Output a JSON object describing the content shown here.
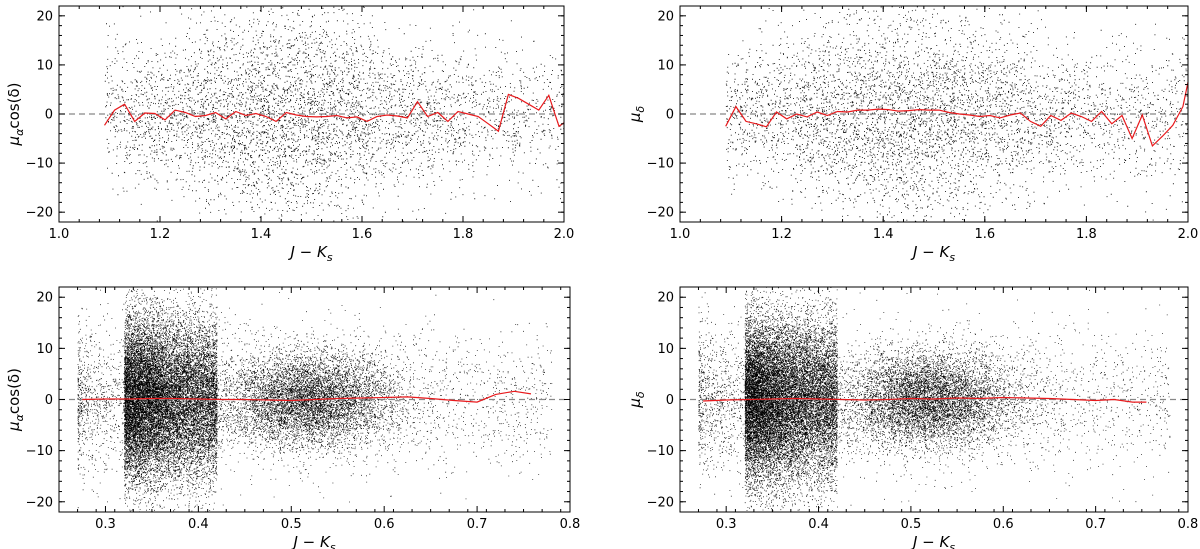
{
  "chart_data": [
    {
      "type": "scatter",
      "xlabel": "J − K",
      "xlabel_sub": "s",
      "ylabel_base": "μ",
      "ylabel_sub": "α",
      "ylabel_rest": "cos(δ)",
      "xlim": [
        1.0,
        2.0
      ],
      "ylim": [
        -22,
        22
      ],
      "xticks": [
        1.0,
        1.2,
        1.4,
        1.6,
        1.8,
        2.0
      ],
      "xtick_labels": [
        "1.0",
        "1.2",
        "1.4",
        "1.6",
        "1.8",
        "2.0"
      ],
      "yticks": [
        -20,
        -10,
        0,
        10,
        20
      ],
      "ytick_labels": [
        "−20",
        "−10",
        "0",
        "10",
        "20"
      ],
      "reference_line_y": 0,
      "reference_color": "#888888",
      "point_color": "#000000",
      "trend_color": "#e8191c",
      "scatter_density": {
        "center_x": 1.45,
        "spread_x": 0.17,
        "x_min": 1.09,
        "x_max": 2.0,
        "approx_points": 5200
      },
      "trend_x": [
        1.09,
        1.11,
        1.13,
        1.15,
        1.17,
        1.19,
        1.21,
        1.23,
        1.25,
        1.27,
        1.29,
        1.31,
        1.33,
        1.35,
        1.37,
        1.39,
        1.41,
        1.43,
        1.45,
        1.47,
        1.49,
        1.51,
        1.53,
        1.55,
        1.57,
        1.59,
        1.61,
        1.63,
        1.65,
        1.67,
        1.69,
        1.71,
        1.73,
        1.75,
        1.77,
        1.79,
        1.81,
        1.83,
        1.85,
        1.87,
        1.89,
        1.91,
        1.93,
        1.95,
        1.97,
        1.99,
        2.0
      ],
      "trend_y": [
        -2.3,
        0.8,
        2,
        -1.5,
        0.2,
        0.1,
        -1.2,
        0.8,
        0.3,
        -0.5,
        -0.3,
        0.3,
        -1,
        0.5,
        -0.3,
        0.1,
        -0.5,
        -1.5,
        0.3,
        -0.2,
        -0.5,
        -0.6,
        -0.5,
        -0.3,
        -0.8,
        -0.6,
        -1.5,
        -0.5,
        -0.2,
        -0.4,
        -0.8,
        2.5,
        -0.5,
        0.3,
        -1.5,
        0.5,
        0,
        -0.5,
        -2,
        -3.5,
        4,
        3.2,
        2,
        0.8,
        3.8,
        -2.5,
        -1.8
      ]
    },
    {
      "type": "scatter",
      "xlabel": "J − K",
      "xlabel_sub": "s",
      "ylabel_base": "μ",
      "ylabel_sub": "δ",
      "ylabel_rest": "",
      "xlim": [
        1.0,
        2.0
      ],
      "ylim": [
        -22,
        22
      ],
      "xticks": [
        1.0,
        1.2,
        1.4,
        1.6,
        1.8,
        2.0
      ],
      "xtick_labels": [
        "1.0",
        "1.2",
        "1.4",
        "1.6",
        "1.8",
        "2.0"
      ],
      "yticks": [
        -20,
        -10,
        0,
        10,
        20
      ],
      "ytick_labels": [
        "−20",
        "−10",
        "0",
        "10",
        "20"
      ],
      "reference_line_y": 0,
      "reference_color": "#888888",
      "point_color": "#000000",
      "trend_color": "#e8191c",
      "scatter_density": {
        "center_x": 1.45,
        "spread_x": 0.17,
        "x_min": 1.09,
        "x_max": 2.0,
        "approx_points": 5200
      },
      "trend_x": [
        1.09,
        1.11,
        1.13,
        1.15,
        1.17,
        1.19,
        1.21,
        1.23,
        1.25,
        1.27,
        1.29,
        1.31,
        1.33,
        1.35,
        1.37,
        1.39,
        1.41,
        1.43,
        1.45,
        1.47,
        1.49,
        1.51,
        1.53,
        1.55,
        1.57,
        1.59,
        1.61,
        1.63,
        1.65,
        1.67,
        1.69,
        1.71,
        1.73,
        1.75,
        1.77,
        1.79,
        1.81,
        1.83,
        1.85,
        1.87,
        1.89,
        1.91,
        1.93,
        1.95,
        1.97,
        1.99,
        2.0
      ],
      "trend_y": [
        -2.5,
        1.5,
        -1.5,
        -2,
        -2.6,
        0.4,
        -1,
        0,
        -0.6,
        0.4,
        -0.3,
        0.5,
        0.4,
        0.8,
        0.8,
        1,
        0.9,
        0.6,
        0.7,
        0.9,
        0.8,
        0.8,
        0.3,
        0,
        -0.2,
        -0.5,
        -0.3,
        -0.8,
        -0.2,
        0.2,
        -1.5,
        -2.5,
        -0.3,
        -1.3,
        0.2,
        -0.5,
        -1.5,
        0.5,
        -2,
        -0.3,
        -5,
        -0.2,
        -6.5,
        -4.5,
        -2.3,
        1.5,
        6.5
      ]
    },
    {
      "type": "scatter",
      "xlabel": "J − K",
      "xlabel_sub": "s",
      "ylabel_base": "μ",
      "ylabel_sub": "α",
      "ylabel_rest": "cos(δ)",
      "xlim": [
        0.25,
        0.8
      ],
      "ylim": [
        -22,
        22
      ],
      "xticks": [
        0.3,
        0.4,
        0.5,
        0.6,
        0.7,
        0.8
      ],
      "xtick_labels": [
        "0.3",
        "0.4",
        "0.5",
        "0.6",
        "0.7",
        "0.8"
      ],
      "yticks": [
        -20,
        -10,
        0,
        10,
        20
      ],
      "ytick_labels": [
        "−20",
        "−10",
        "0",
        "10",
        "20"
      ],
      "reference_line_y": 0,
      "reference_color": "#888888",
      "point_color": "#000000",
      "trend_color": "#e8191c",
      "scatter_density": {
        "cluster1_x": [
          0.32,
          0.42
        ],
        "cluster2_center_x": 0.52,
        "x_min": 0.27,
        "x_max": 0.78,
        "approx_points": 26000
      },
      "trend_x": [
        0.275,
        0.3,
        0.325,
        0.35,
        0.375,
        0.4,
        0.425,
        0.45,
        0.475,
        0.5,
        0.525,
        0.55,
        0.575,
        0.6,
        0.625,
        0.65,
        0.675,
        0.7,
        0.72,
        0.74,
        0.758
      ],
      "trend_y": [
        0,
        0.1,
        0.1,
        0.2,
        0.2,
        0.1,
        0,
        0,
        -0.1,
        -0.2,
        0,
        0.2,
        0.3,
        0.4,
        0.5,
        0.2,
        -0.2,
        -0.5,
        1,
        1.6,
        1.1
      ]
    },
    {
      "type": "scatter",
      "xlabel": "J − K",
      "xlabel_sub": "s",
      "ylabel_base": "μ",
      "ylabel_sub": "δ",
      "ylabel_rest": "",
      "xlim": [
        0.25,
        0.8
      ],
      "ylim": [
        -22,
        22
      ],
      "xticks": [
        0.3,
        0.4,
        0.5,
        0.6,
        0.7,
        0.8
      ],
      "xtick_labels": [
        "0.3",
        "0.4",
        "0.5",
        "0.6",
        "0.7",
        "0.8"
      ],
      "yticks": [
        -20,
        -10,
        0,
        10,
        20
      ],
      "ytick_labels": [
        "−20",
        "−10",
        "0",
        "10",
        "20"
      ],
      "reference_line_y": 0,
      "reference_color": "#888888",
      "point_color": "#000000",
      "trend_color": "#e8191c",
      "scatter_density": {
        "cluster1_x": [
          0.32,
          0.42
        ],
        "cluster2_center_x": 0.52,
        "x_min": 0.27,
        "x_max": 0.78,
        "approx_points": 26000
      },
      "trend_x": [
        0.275,
        0.3,
        0.325,
        0.35,
        0.375,
        0.4,
        0.425,
        0.45,
        0.475,
        0.5,
        0.525,
        0.55,
        0.575,
        0.6,
        0.625,
        0.65,
        0.675,
        0.7,
        0.72,
        0.74,
        0.755
      ],
      "trend_y": [
        -0.3,
        -0.1,
        0,
        0.1,
        0.2,
        0.1,
        0,
        -0.1,
        0,
        0.2,
        0.1,
        0.3,
        0.2,
        0.4,
        0.3,
        0.2,
        0,
        -0.2,
        0,
        -0.5,
        -0.5
      ]
    }
  ]
}
